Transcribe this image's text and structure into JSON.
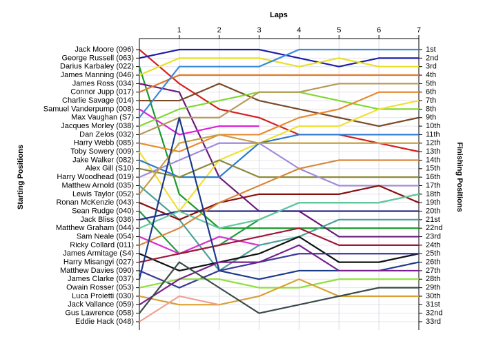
{
  "chart_data": {
    "type": "bump",
    "xlabel": "Laps",
    "ylabel": "Starting Positions",
    "y2label": "Finishing Positions",
    "x": [
      0,
      1,
      2,
      3,
      4,
      5,
      6,
      7
    ],
    "xlim": [
      0,
      7
    ],
    "xticks": [
      1,
      2,
      3,
      4,
      5,
      6,
      7
    ],
    "ylim": [
      1,
      33
    ],
    "grid": true,
    "finishing_labels": [
      "1st",
      "2nd",
      "3rd",
      "4th",
      "5th",
      "6th",
      "7th",
      "8th",
      "9th",
      "10th",
      "11th",
      "12th",
      "13th",
      "14th",
      "15th",
      "16th",
      "17th",
      "18th",
      "19th",
      "20th",
      "21st",
      "22nd",
      "23rd",
      "24th",
      "25th",
      "26th",
      "27th",
      "28th",
      "29th",
      "30th",
      "31st",
      "32nd",
      "33rd"
    ],
    "series": [
      {
        "name": "Jack Moore (096)",
        "color": "#d42020",
        "values": [
          1,
          5,
          8,
          9,
          11,
          11,
          12,
          13
        ]
      },
      {
        "name": "George Russell (063)",
        "color": "#1c1ca8",
        "values": [
          2,
          1,
          1,
          1,
          2,
          3,
          2,
          2
        ]
      },
      {
        "name": "Darius Karbaley (022)",
        "color": "#1a9a2a",
        "values": [
          3,
          18,
          22,
          22,
          22,
          22,
          22,
          22
        ]
      },
      {
        "name": "James Manning (046)",
        "color": "#e8e020",
        "values": [
          4,
          2,
          2,
          2,
          3,
          2,
          3,
          3
        ]
      },
      {
        "name": "James Ross (034)",
        "color": "#6a1a7a",
        "values": [
          5,
          6,
          16,
          20,
          20,
          23,
          23,
          23
        ]
      },
      {
        "name": "Connor Jupp (017)",
        "color": "#e07828",
        "values": [
          6,
          4,
          4,
          4,
          4,
          4,
          4,
          4
        ]
      },
      {
        "name": "Charlie Savage (014)",
        "color": "#7a4a28",
        "values": [
          7,
          7,
          5,
          7,
          8,
          9,
          10,
          9
        ]
      },
      {
        "name": "Samuel Vanderpump (008)",
        "color": "#e020d8",
        "values": [
          8,
          11,
          10,
          10,
          null,
          null,
          null,
          null
        ]
      },
      {
        "name": "Max Vaughan (S7)",
        "color": "#3a8ad8",
        "values": [
          9,
          3,
          3,
          3,
          1,
          1,
          1,
          1
        ]
      },
      {
        "name": "Jacques Morley (038)",
        "color": "#80d830",
        "values": [
          10,
          8,
          7,
          6,
          6,
          7,
          8,
          8
        ]
      },
      {
        "name": "Dan Zelos (032)",
        "color": "#b89a5a",
        "values": [
          11,
          9,
          9,
          6,
          6,
          5,
          5,
          5
        ]
      },
      {
        "name": "Harry Webb (085)",
        "color": "#e88a30",
        "values": [
          12,
          13,
          11,
          11,
          9,
          8,
          6,
          6
        ]
      },
      {
        "name": "Toby Sowery (009)",
        "color": "#f0e030",
        "values": [
          13,
          20,
          14,
          12,
          10,
          10,
          8,
          7
        ]
      },
      {
        "name": "Jake Walker (082)",
        "color": "#2a7ad0",
        "values": [
          14,
          16,
          16,
          12,
          11,
          11,
          11,
          11
        ]
      },
      {
        "name": "Alex Gill (S10)",
        "color": "#8a8a3a",
        "values": [
          15,
          16,
          14,
          16,
          16,
          16,
          16,
          16
        ]
      },
      {
        "name": "Harry Woodhead (019)",
        "color": "#a08ad8",
        "values": [
          16,
          14,
          12,
          12,
          15,
          17,
          17,
          17
        ]
      },
      {
        "name": "Matthew Arnold (035)",
        "color": "#4aa098",
        "values": [
          17,
          21,
          27,
          24,
          23,
          21,
          21,
          21
        ]
      },
      {
        "name": "Lewis Taylor (052)",
        "color": "#c8a040",
        "values": [
          18,
          12,
          11,
          12,
          12,
          12,
          12,
          12
        ]
      },
      {
        "name": "Ronan McKenzie (043)",
        "color": "#8a1010",
        "values": [
          19,
          21,
          19,
          18,
          18,
          18,
          17,
          19
        ]
      },
      {
        "name": "Sean Rudge (040)",
        "color": "#209a40",
        "values": [
          20,
          25,
          24,
          21,
          19,
          19,
          19,
          18
        ]
      },
      {
        "name": "Jack Bliss (036)",
        "color": "#2a2a8a",
        "values": [
          21,
          20,
          20,
          20,
          20,
          20,
          20,
          20
        ]
      },
      {
        "name": "Matthew Graham (044)",
        "color": "#60c8a0",
        "values": [
          22,
          20,
          22,
          21,
          19,
          19,
          19,
          18
        ]
      },
      {
        "name": "Sam Neale (054)",
        "color": "#d830d0",
        "values": [
          23,
          25,
          23,
          24,
          null,
          null,
          null,
          null
        ]
      },
      {
        "name": "Ricky Collard (011)",
        "color": "#d8883a",
        "values": [
          24,
          22,
          19,
          17,
          15,
          14,
          14,
          14
        ]
      },
      {
        "name": "James Armitage (S4)",
        "color": "#101010",
        "values": [
          25,
          27,
          26,
          25,
          23,
          26,
          26,
          25
        ]
      },
      {
        "name": "Harry Misangyi (027)",
        "color": "#a01838",
        "values": [
          26,
          25,
          24,
          23,
          22,
          24,
          24,
          24
        ]
      },
      {
        "name": "Matthew Davies (090)",
        "color": "#3a3a9a",
        "values": [
          27,
          29,
          27,
          26,
          25,
          25,
          25,
          25
        ]
      },
      {
        "name": "James Clarke (037)",
        "color": "#1a3a8a",
        "values": [
          28,
          9,
          27,
          28,
          27,
          27,
          27,
          26
        ]
      },
      {
        "name": "Owain Rosser (053)",
        "color": "#90e040",
        "values": [
          29,
          28,
          28,
          29,
          29,
          28,
          28,
          28
        ]
      },
      {
        "name": "Luca Proietti (030)",
        "color": "#d8a030",
        "values": [
          30,
          31,
          31,
          30,
          28,
          30,
          30,
          30
        ]
      },
      {
        "name": "Jack Vallance (059)",
        "color": "#7a2090",
        "values": [
          31,
          28,
          26,
          26,
          24,
          27,
          27,
          27
        ]
      },
      {
        "name": "Gus Lawrence (058)",
        "color": "#3a4a4a",
        "values": [
          32,
          26,
          29,
          32,
          31,
          30,
          29,
          29
        ]
      },
      {
        "name": "Eddie Hack (048)",
        "color": "#f0a090",
        "values": [
          33,
          30,
          31,
          null,
          null,
          null,
          null,
          null
        ]
      }
    ]
  }
}
